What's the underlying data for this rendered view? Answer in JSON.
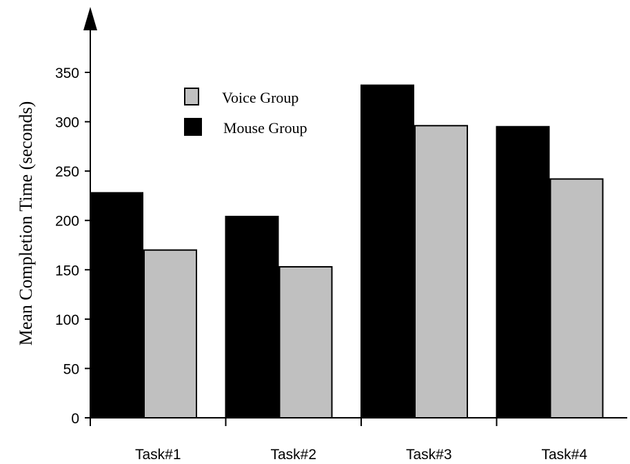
{
  "chart_data": {
    "type": "bar",
    "title": "",
    "xlabel": "",
    "ylabel": "Mean Completion Time (seconds)",
    "categories": [
      "Task#1",
      "Task#2",
      "Task#3",
      "Task#4"
    ],
    "series": [
      {
        "name": "Mouse Group",
        "color": "#000000",
        "values": [
          228,
          204,
          337,
          295
        ]
      },
      {
        "name": "Voice Group",
        "color": "#c0c0c0",
        "values": [
          170,
          153,
          296,
          242
        ]
      }
    ],
    "ylim": [
      0,
      350
    ],
    "yticks": [
      0,
      50,
      100,
      150,
      200,
      250,
      300,
      350
    ],
    "grid": false,
    "legend": {
      "placement": "top-left",
      "order": [
        "Voice Group",
        "Mouse Group"
      ]
    }
  }
}
